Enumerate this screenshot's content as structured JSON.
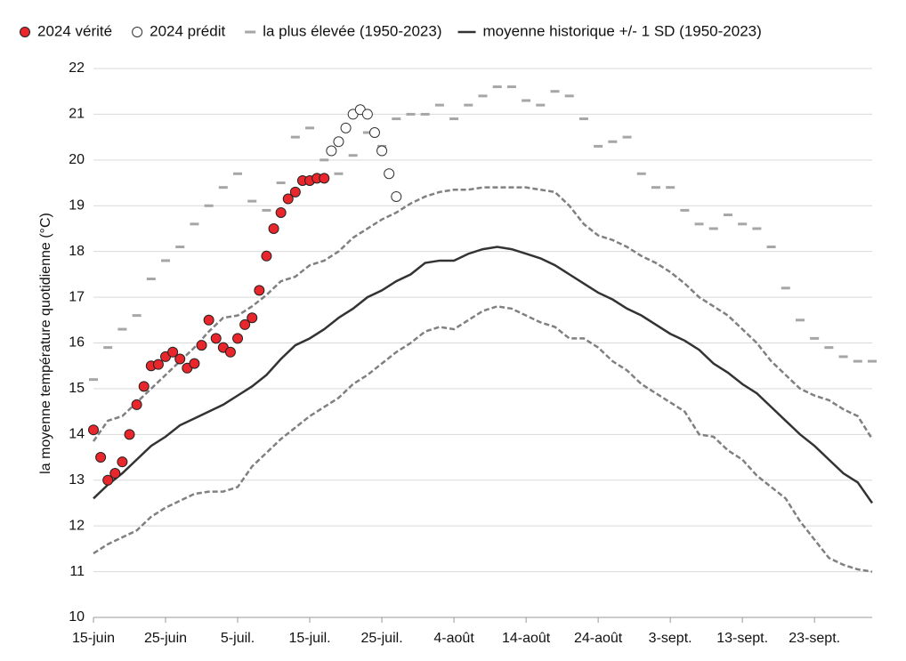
{
  "chart_data": {
    "type": "line",
    "y_label": "la moyenne température quotidienne (°C)",
    "ylim": [
      10,
      22
    ],
    "yticks": [
      10,
      11,
      12,
      13,
      14,
      15,
      16,
      17,
      18,
      19,
      20,
      21,
      22
    ],
    "xlim": [
      0,
      108
    ],
    "xticks": [
      {
        "value": 0,
        "label": "15-juin"
      },
      {
        "value": 10,
        "label": "25-juin"
      },
      {
        "value": 20,
        "label": "5-juil."
      },
      {
        "value": 30,
        "label": "15-juil."
      },
      {
        "value": 40,
        "label": "25-juil."
      },
      {
        "value": 50,
        "label": "4-août"
      },
      {
        "value": 60,
        "label": "14-août"
      },
      {
        "value": 70,
        "label": "24-août"
      },
      {
        "value": 80,
        "label": "3-sept."
      },
      {
        "value": 90,
        "label": "13-sept."
      },
      {
        "value": 100,
        "label": "23-sept."
      }
    ],
    "grid": true,
    "series": [
      {
        "name": "2024 vérité",
        "style": "filled-circle",
        "color": "#e8262b",
        "x": [
          0,
          1,
          2,
          3,
          4,
          5,
          6,
          7,
          8,
          9,
          10,
          11,
          12,
          13,
          14,
          15,
          16,
          17,
          18,
          19,
          20,
          21,
          22,
          23,
          24,
          25,
          26,
          27,
          28,
          29,
          30,
          31,
          32
        ],
        "values": [
          14.1,
          13.5,
          13.0,
          13.15,
          13.4,
          14.0,
          14.65,
          15.05,
          15.5,
          15.53,
          15.7,
          15.8,
          15.65,
          15.45,
          15.55,
          15.95,
          16.5,
          16.1,
          15.9,
          15.8,
          16.1,
          16.4,
          16.55,
          17.15,
          17.9,
          18.5,
          18.85,
          19.15,
          19.3,
          19.55,
          19.55,
          19.6,
          19.6
        ]
      },
      {
        "name": "2024 prédit",
        "style": "hollow-circle",
        "color": "#333333",
        "x": [
          33,
          34,
          35,
          36,
          37,
          38,
          39,
          40,
          41,
          42
        ],
        "values": [
          20.2,
          20.4,
          20.7,
          21.0,
          21.1,
          21.0,
          20.6,
          20.2,
          19.7,
          19.2
        ]
      },
      {
        "name": "la plus élevée (1950-2023)",
        "style": "dash",
        "color": "#a6a6a6",
        "x": [
          0,
          2,
          4,
          6,
          8,
          10,
          12,
          14,
          16,
          18,
          20,
          22,
          24,
          26,
          28,
          30,
          32,
          34,
          36,
          38,
          40,
          42,
          44,
          46,
          48,
          50,
          52,
          54,
          56,
          58,
          60,
          62,
          64,
          66,
          68,
          70,
          72,
          74,
          76,
          78,
          80,
          82,
          84,
          86,
          88,
          90,
          92,
          94,
          96,
          98,
          100,
          102,
          104,
          106,
          108
        ],
        "values": [
          15.2,
          15.9,
          16.3,
          16.6,
          17.4,
          17.8,
          18.1,
          18.6,
          19.0,
          19.4,
          19.7,
          19.1,
          18.9,
          19.5,
          20.5,
          20.7,
          20.0,
          19.7,
          20.1,
          20.6,
          20.3,
          20.9,
          21.0,
          21.0,
          21.2,
          20.9,
          21.2,
          21.4,
          21.6,
          21.6,
          21.3,
          21.2,
          21.5,
          21.4,
          20.9,
          20.3,
          20.4,
          20.5,
          19.7,
          19.4,
          19.4,
          18.9,
          18.6,
          18.5,
          18.8,
          18.6,
          18.5,
          18.1,
          17.2,
          16.5,
          16.1,
          15.9,
          15.7,
          15.6,
          15.6
        ]
      },
      {
        "name": "moyenne historique +/- 1 SD (1950-2023)",
        "style": "line",
        "color": "#333333",
        "sd_color": "#808080",
        "x": [
          0,
          2,
          4,
          6,
          8,
          10,
          12,
          14,
          16,
          18,
          20,
          22,
          24,
          26,
          28,
          30,
          32,
          34,
          36,
          38,
          40,
          42,
          44,
          46,
          48,
          50,
          52,
          54,
          56,
          58,
          60,
          62,
          64,
          66,
          68,
          70,
          72,
          74,
          76,
          78,
          80,
          82,
          84,
          86,
          88,
          90,
          92,
          94,
          96,
          98,
          100,
          102,
          104,
          106,
          108
        ],
        "values": [
          12.6,
          12.9,
          13.15,
          13.45,
          13.75,
          13.95,
          14.2,
          14.35,
          14.5,
          14.65,
          14.85,
          15.05,
          15.3,
          15.65,
          15.95,
          16.1,
          16.3,
          16.55,
          16.75,
          17.0,
          17.15,
          17.35,
          17.5,
          17.75,
          17.8,
          17.8,
          17.95,
          18.05,
          18.1,
          18.05,
          17.95,
          17.85,
          17.7,
          17.5,
          17.3,
          17.1,
          16.95,
          16.75,
          16.6,
          16.4,
          16.2,
          16.05,
          15.85,
          15.55,
          15.35,
          15.1,
          14.9,
          14.6,
          14.3,
          14.0,
          13.75,
          13.45,
          13.15,
          12.95,
          12.5
        ],
        "sd_upper": [
          13.85,
          14.3,
          14.4,
          14.7,
          15.0,
          15.3,
          15.6,
          15.9,
          16.25,
          16.55,
          16.6,
          16.8,
          17.05,
          17.35,
          17.45,
          17.7,
          17.8,
          18.0,
          18.3,
          18.5,
          18.7,
          18.85,
          19.05,
          19.2,
          19.3,
          19.35,
          19.35,
          19.4,
          19.4,
          19.4,
          19.4,
          19.35,
          19.3,
          19.0,
          18.6,
          18.35,
          18.25,
          18.1,
          17.9,
          17.75,
          17.55,
          17.3,
          17.0,
          16.8,
          16.6,
          16.3,
          16.0,
          15.6,
          15.3,
          15.0,
          14.85,
          14.75,
          14.55,
          14.4,
          13.9
        ],
        "sd_lower": [
          11.4,
          11.6,
          11.75,
          11.9,
          12.2,
          12.4,
          12.55,
          12.7,
          12.75,
          12.75,
          12.85,
          13.3,
          13.6,
          13.9,
          14.15,
          14.4,
          14.6,
          14.8,
          15.1,
          15.3,
          15.55,
          15.8,
          16.0,
          16.25,
          16.35,
          16.3,
          16.5,
          16.7,
          16.8,
          16.75,
          16.6,
          16.45,
          16.35,
          16.1,
          16.1,
          15.9,
          15.6,
          15.4,
          15.1,
          14.9,
          14.7,
          14.5,
          14.0,
          13.95,
          13.65,
          13.45,
          13.1,
          12.85,
          12.6,
          12.1,
          11.7,
          11.3,
          11.15,
          11.05,
          11.0
        ]
      }
    ]
  }
}
